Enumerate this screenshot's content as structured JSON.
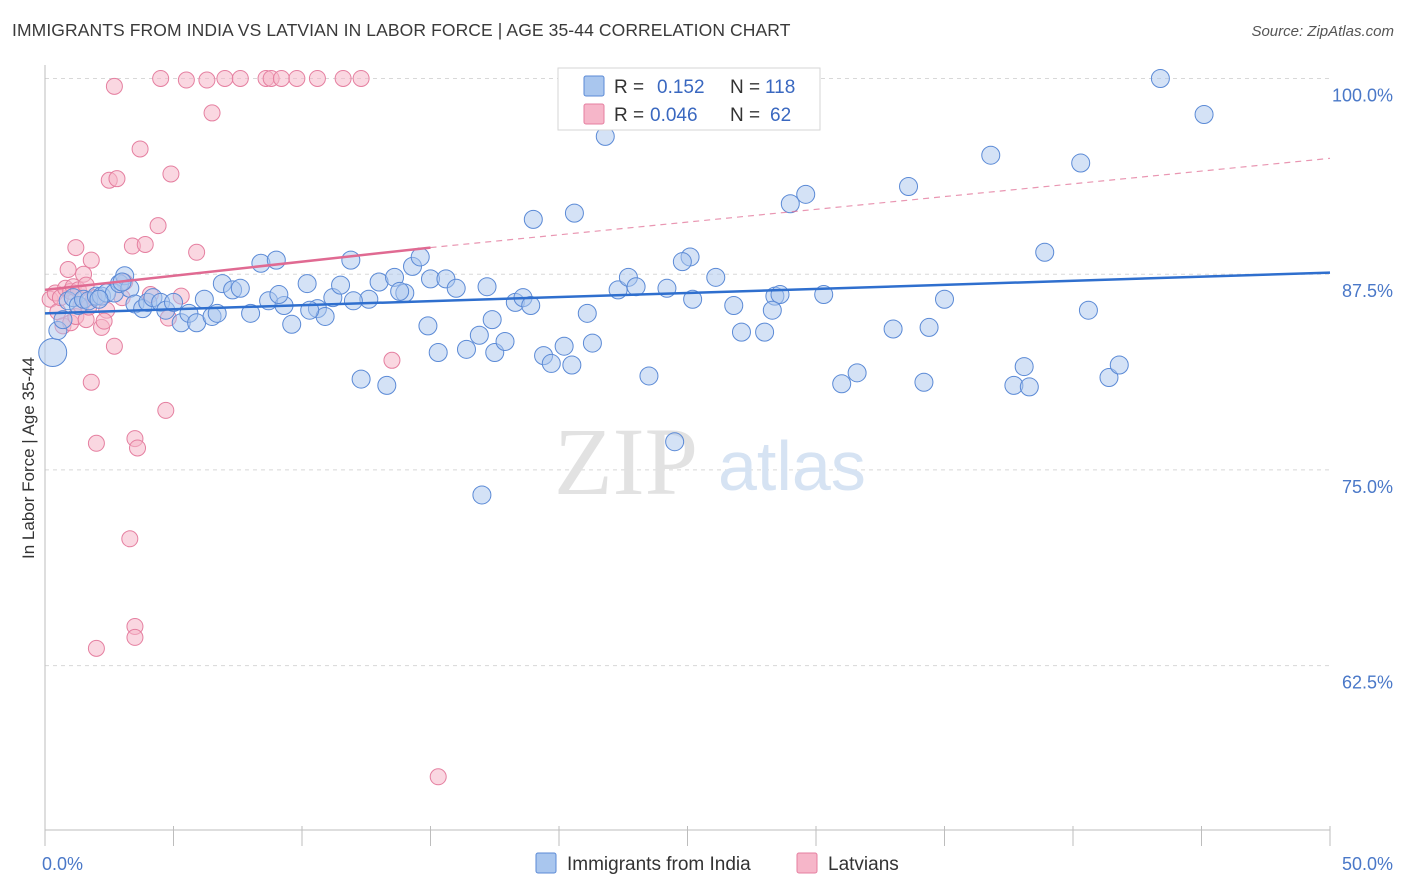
{
  "header": {
    "title": "IMMIGRANTS FROM INDIA VS LATVIAN IN LABOR FORCE | AGE 35-44 CORRELATION CHART",
    "source": "Source: ZipAtlas.com"
  },
  "colors": {
    "india_fill": "#a9c6ee",
    "india_stroke": "#5b8ad6",
    "india_line": "#2f6fce",
    "latvian_fill": "#f6b6c9",
    "latvian_stroke": "#e57fa0",
    "latvian_line": "#e06a92",
    "grid": "#d8d8d8",
    "axis_label": "#4a78c8"
  },
  "watermark": {
    "zip": "ZIP",
    "atlas": "atlas"
  },
  "legend": {
    "rows": [
      {
        "r_label": "R =",
        "r_value": "0.152",
        "n_label": "N =",
        "n_value": "118"
      },
      {
        "r_label": "R =",
        "r_value": "0.046",
        "n_label": "N =",
        "n_value": "62"
      }
    ]
  },
  "bottom_legend": {
    "items": [
      {
        "label": "Immigrants from India"
      },
      {
        "label": "Latvians"
      }
    ]
  },
  "chart_data": {
    "type": "scatter",
    "title": "IMMIGRANTS FROM INDIA VS LATVIAN IN LABOR FORCE | AGE 35-44 CORRELATION CHART",
    "ylabel": "In Labor Force | Age 35-44",
    "xlabel": "",
    "xlim": [
      0,
      50
    ],
    "ylim": [
      52,
      101.5
    ],
    "x_tick_labels": [
      {
        "value": 0,
        "label": "0.0%"
      },
      {
        "value": 50,
        "label": "50.0%"
      }
    ],
    "y_tick_labels": [
      {
        "value": 100,
        "label": "100.0%"
      },
      {
        "value": 87.5,
        "label": "87.5%"
      },
      {
        "value": 75,
        "label": "75.0%"
      },
      {
        "value": 62.5,
        "label": "62.5%"
      }
    ],
    "y_gridlines": [
      100,
      87.5,
      75,
      62.5
    ],
    "x_minor_ticks": [
      0,
      5,
      10,
      15,
      20,
      25,
      30,
      35,
      40,
      45,
      50
    ],
    "legend_placement": "top-center",
    "grid": true,
    "series": [
      {
        "name": "Immigrants from India",
        "R": 0.152,
        "N": 118,
        "trend": {
          "x": [
            0,
            50
          ],
          "y": [
            85.0,
            87.6
          ]
        },
        "points": [
          [
            0.3,
            82.5
          ],
          [
            0.5,
            83.9
          ],
          [
            0.7,
            84.6
          ],
          [
            0.9,
            85.8
          ],
          [
            1.1,
            86.0
          ],
          [
            1.3,
            85.5
          ],
          [
            1.5,
            85.9
          ],
          [
            1.7,
            85.8
          ],
          [
            2.0,
            86.1
          ],
          [
            2.2,
            86.1
          ],
          [
            2.4,
            86.3
          ],
          [
            2.7,
            86.3
          ],
          [
            2.9,
            86.9
          ],
          [
            3.1,
            87.4
          ],
          [
            3.3,
            86.6
          ],
          [
            3.5,
            85.6
          ],
          [
            3.8,
            85.3
          ],
          [
            4.0,
            85.7
          ],
          [
            4.2,
            86.0
          ],
          [
            4.5,
            85.7
          ],
          [
            4.7,
            85.2
          ],
          [
            5.0,
            85.7
          ],
          [
            5.3,
            84.4
          ],
          [
            5.6,
            85.0
          ],
          [
            5.9,
            84.4
          ],
          [
            6.2,
            85.9
          ],
          [
            6.5,
            84.8
          ],
          [
            6.9,
            86.9
          ],
          [
            7.3,
            86.5
          ],
          [
            7.6,
            86.6
          ],
          [
            8.0,
            85.0
          ],
          [
            8.4,
            88.2
          ],
          [
            8.7,
            85.8
          ],
          [
            9.0,
            88.4
          ],
          [
            9.3,
            85.5
          ],
          [
            9.6,
            84.3
          ],
          [
            10.2,
            86.9
          ],
          [
            10.6,
            85.3
          ],
          [
            10.9,
            84.8
          ],
          [
            11.2,
            86.0
          ],
          [
            11.5,
            86.8
          ],
          [
            11.9,
            88.4
          ],
          [
            12.3,
            80.8
          ],
          [
            12.6,
            85.9
          ],
          [
            13.0,
            87.0
          ],
          [
            13.3,
            80.4
          ],
          [
            13.6,
            87.3
          ],
          [
            14.0,
            86.3
          ],
          [
            14.3,
            88.0
          ],
          [
            14.6,
            88.6
          ],
          [
            15.0,
            87.2
          ],
          [
            15.3,
            82.5
          ],
          [
            15.6,
            87.2
          ],
          [
            16.0,
            86.6
          ],
          [
            16.4,
            82.7
          ],
          [
            16.9,
            83.6
          ],
          [
            17.2,
            86.7
          ],
          [
            17.5,
            82.5
          ],
          [
            17.9,
            83.2
          ],
          [
            18.3,
            85.7
          ],
          [
            18.6,
            86.0
          ],
          [
            18.9,
            85.5
          ],
          [
            19.4,
            82.3
          ],
          [
            19.7,
            81.8
          ],
          [
            20.2,
            82.9
          ],
          [
            20.5,
            81.7
          ],
          [
            21.1,
            85.0
          ],
          [
            21.3,
            83.1
          ],
          [
            21.8,
            96.3
          ],
          [
            22.3,
            86.5
          ],
          [
            22.7,
            87.3
          ],
          [
            23.5,
            81.0
          ],
          [
            24.2,
            86.6
          ],
          [
            24.5,
            76.8
          ],
          [
            25.1,
            88.6
          ],
          [
            25.2,
            85.9
          ],
          [
            26.1,
            87.3
          ],
          [
            26.8,
            85.5
          ],
          [
            27.1,
            83.8
          ],
          [
            28.0,
            83.8
          ],
          [
            28.4,
            86.1
          ],
          [
            28.6,
            86.2
          ],
          [
            29.0,
            92.0
          ],
          [
            29.6,
            92.6
          ],
          [
            30.3,
            86.2
          ],
          [
            31.0,
            80.5
          ],
          [
            31.6,
            81.2
          ],
          [
            33.0,
            84.0
          ],
          [
            33.6,
            93.1
          ],
          [
            34.2,
            80.6
          ],
          [
            34.4,
            84.1
          ],
          [
            36.8,
            95.1
          ],
          [
            37.7,
            80.4
          ],
          [
            38.1,
            81.6
          ],
          [
            38.3,
            80.3
          ],
          [
            38.9,
            88.9
          ],
          [
            40.3,
            94.6
          ],
          [
            40.6,
            85.2
          ],
          [
            41.4,
            80.9
          ],
          [
            41.8,
            81.7
          ],
          [
            45.1,
            97.7
          ],
          [
            17.0,
            73.4
          ],
          [
            20.6,
            91.4
          ],
          [
            19.0,
            91.0
          ],
          [
            24.8,
            88.3
          ],
          [
            2.1,
            85.9
          ],
          [
            3.0,
            87.0
          ],
          [
            6.7,
            85.0
          ],
          [
            9.1,
            86.2
          ],
          [
            12.0,
            85.8
          ],
          [
            13.8,
            86.4
          ],
          [
            17.4,
            84.6
          ],
          [
            23.0,
            86.7
          ],
          [
            28.3,
            85.2
          ],
          [
            35.0,
            85.9
          ],
          [
            43.4,
            100.0
          ],
          [
            10.3,
            85.2
          ],
          [
            14.9,
            84.2
          ]
        ]
      },
      {
        "name": "Latvians",
        "R": 0.046,
        "N": 62,
        "trend": {
          "x": [
            0,
            15
          ],
          "y": [
            86.5,
            89.2
          ],
          "dashed_x": [
            15,
            50
          ],
          "dashed_y": [
            89.2,
            94.9
          ]
        },
        "points": [
          [
            0.2,
            85.9
          ],
          [
            0.4,
            86.3
          ],
          [
            0.5,
            85.1
          ],
          [
            0.6,
            86.0
          ],
          [
            0.7,
            84.2
          ],
          [
            0.8,
            86.6
          ],
          [
            0.9,
            87.8
          ],
          [
            1.0,
            86.4
          ],
          [
            1.0,
            84.4
          ],
          [
            1.1,
            86.7
          ],
          [
            1.2,
            89.2
          ],
          [
            1.2,
            84.8
          ],
          [
            1.3,
            86.5
          ],
          [
            1.4,
            85.5
          ],
          [
            1.5,
            87.5
          ],
          [
            1.6,
            84.6
          ],
          [
            1.7,
            85.4
          ],
          [
            1.8,
            80.6
          ],
          [
            1.9,
            86.0
          ],
          [
            2.0,
            63.6
          ],
          [
            2.0,
            76.7
          ],
          [
            2.2,
            84.1
          ],
          [
            2.4,
            85.2
          ],
          [
            2.5,
            93.5
          ],
          [
            1.8,
            88.4
          ],
          [
            2.7,
            82.9
          ],
          [
            2.8,
            93.6
          ],
          [
            3.0,
            86.0
          ],
          [
            2.7,
            99.5
          ],
          [
            3.3,
            70.6
          ],
          [
            3.4,
            89.3
          ],
          [
            3.5,
            65.0
          ],
          [
            3.5,
            77.0
          ],
          [
            3.6,
            76.4
          ],
          [
            3.7,
            95.5
          ],
          [
            3.9,
            89.4
          ],
          [
            4.1,
            86.2
          ],
          [
            4.4,
            90.6
          ],
          [
            4.7,
            78.8
          ],
          [
            4.9,
            93.9
          ],
          [
            5.3,
            86.1
          ],
          [
            5.5,
            99.9
          ],
          [
            5.9,
            88.9
          ],
          [
            6.3,
            99.9
          ],
          [
            6.5,
            97.8
          ],
          [
            7.0,
            100.0
          ],
          [
            7.6,
            100.0
          ],
          [
            8.6,
            100.0
          ],
          [
            8.8,
            100.0
          ],
          [
            9.2,
            100.0
          ],
          [
            9.8,
            100.0
          ],
          [
            10.6,
            100.0
          ],
          [
            11.6,
            100.0
          ],
          [
            12.3,
            100.0
          ],
          [
            13.5,
            82.0
          ],
          [
            15.3,
            55.4
          ],
          [
            3.5,
            64.3
          ],
          [
            4.8,
            84.7
          ],
          [
            2.3,
            84.5
          ],
          [
            3.1,
            87.0
          ],
          [
            1.6,
            86.8
          ],
          [
            4.5,
            100.0
          ]
        ]
      }
    ]
  }
}
